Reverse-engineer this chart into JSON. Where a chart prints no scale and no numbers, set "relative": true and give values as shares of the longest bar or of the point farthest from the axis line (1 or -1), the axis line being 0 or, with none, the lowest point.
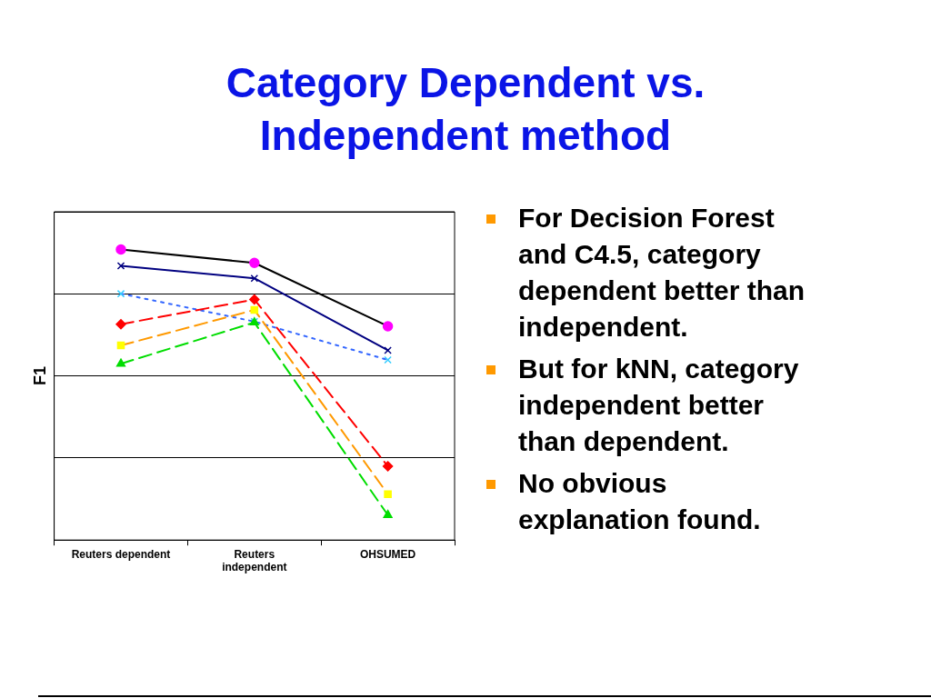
{
  "chart_data": {
    "type": "line",
    "title": "Category Dependent vs. Independent method",
    "ylabel": "F1",
    "categories": [
      "Reuters dependent",
      "Reuters independent",
      "OHSUMED"
    ],
    "relative": true,
    "grid": "y",
    "legend": false,
    "series": [
      {
        "color": "#000000",
        "colors": [
          "#ff00ff",
          "#ff00ff",
          "#ff00ff"
        ],
        "marker": "circle",
        "line_style": "solid",
        "values": [
          1,
          0.954,
          0.736
        ]
      },
      {
        "color": "#000080",
        "colors": [
          "#000080",
          "#000080",
          "#000080"
        ],
        "marker": "cross",
        "line_style": "solid",
        "values": [
          0.944,
          0.901,
          0.653
        ]
      },
      {
        "color": "#3366ff",
        "colors": [
          "#33ccff",
          "#33ccff",
          "#33ccff"
        ],
        "marker": "cross",
        "line_style": "dotted",
        "values": [
          0.848,
          0.752,
          0.62
        ]
      },
      {
        "color": "#ff0000",
        "colors": [
          "#ff0000",
          "#ff0000",
          "#ff0000"
        ],
        "marker": "diamond",
        "line_style": "dashed",
        "values": [
          0.743,
          0.828,
          0.254
        ]
      },
      {
        "color": "#ff9900",
        "colors": [
          "#ffff00",
          "#ffff00",
          "#ffff00"
        ],
        "marker": "square",
        "line_style": "dashed",
        "values": [
          0.67,
          0.792,
          0.158
        ]
      },
      {
        "color": "#00dd00",
        "colors": [
          "#00dd00",
          "#00dd00",
          "#00dd00"
        ],
        "marker": "triangle",
        "line_style": "dashed",
        "values": [
          0.607,
          0.749,
          0.086
        ]
      }
    ],
    "annotations": [
      "For Decision Forest and C4.5, category dependent better than independent.",
      "But for kNN, category independent better than dependent.",
      "No obvious explanation found."
    ]
  }
}
